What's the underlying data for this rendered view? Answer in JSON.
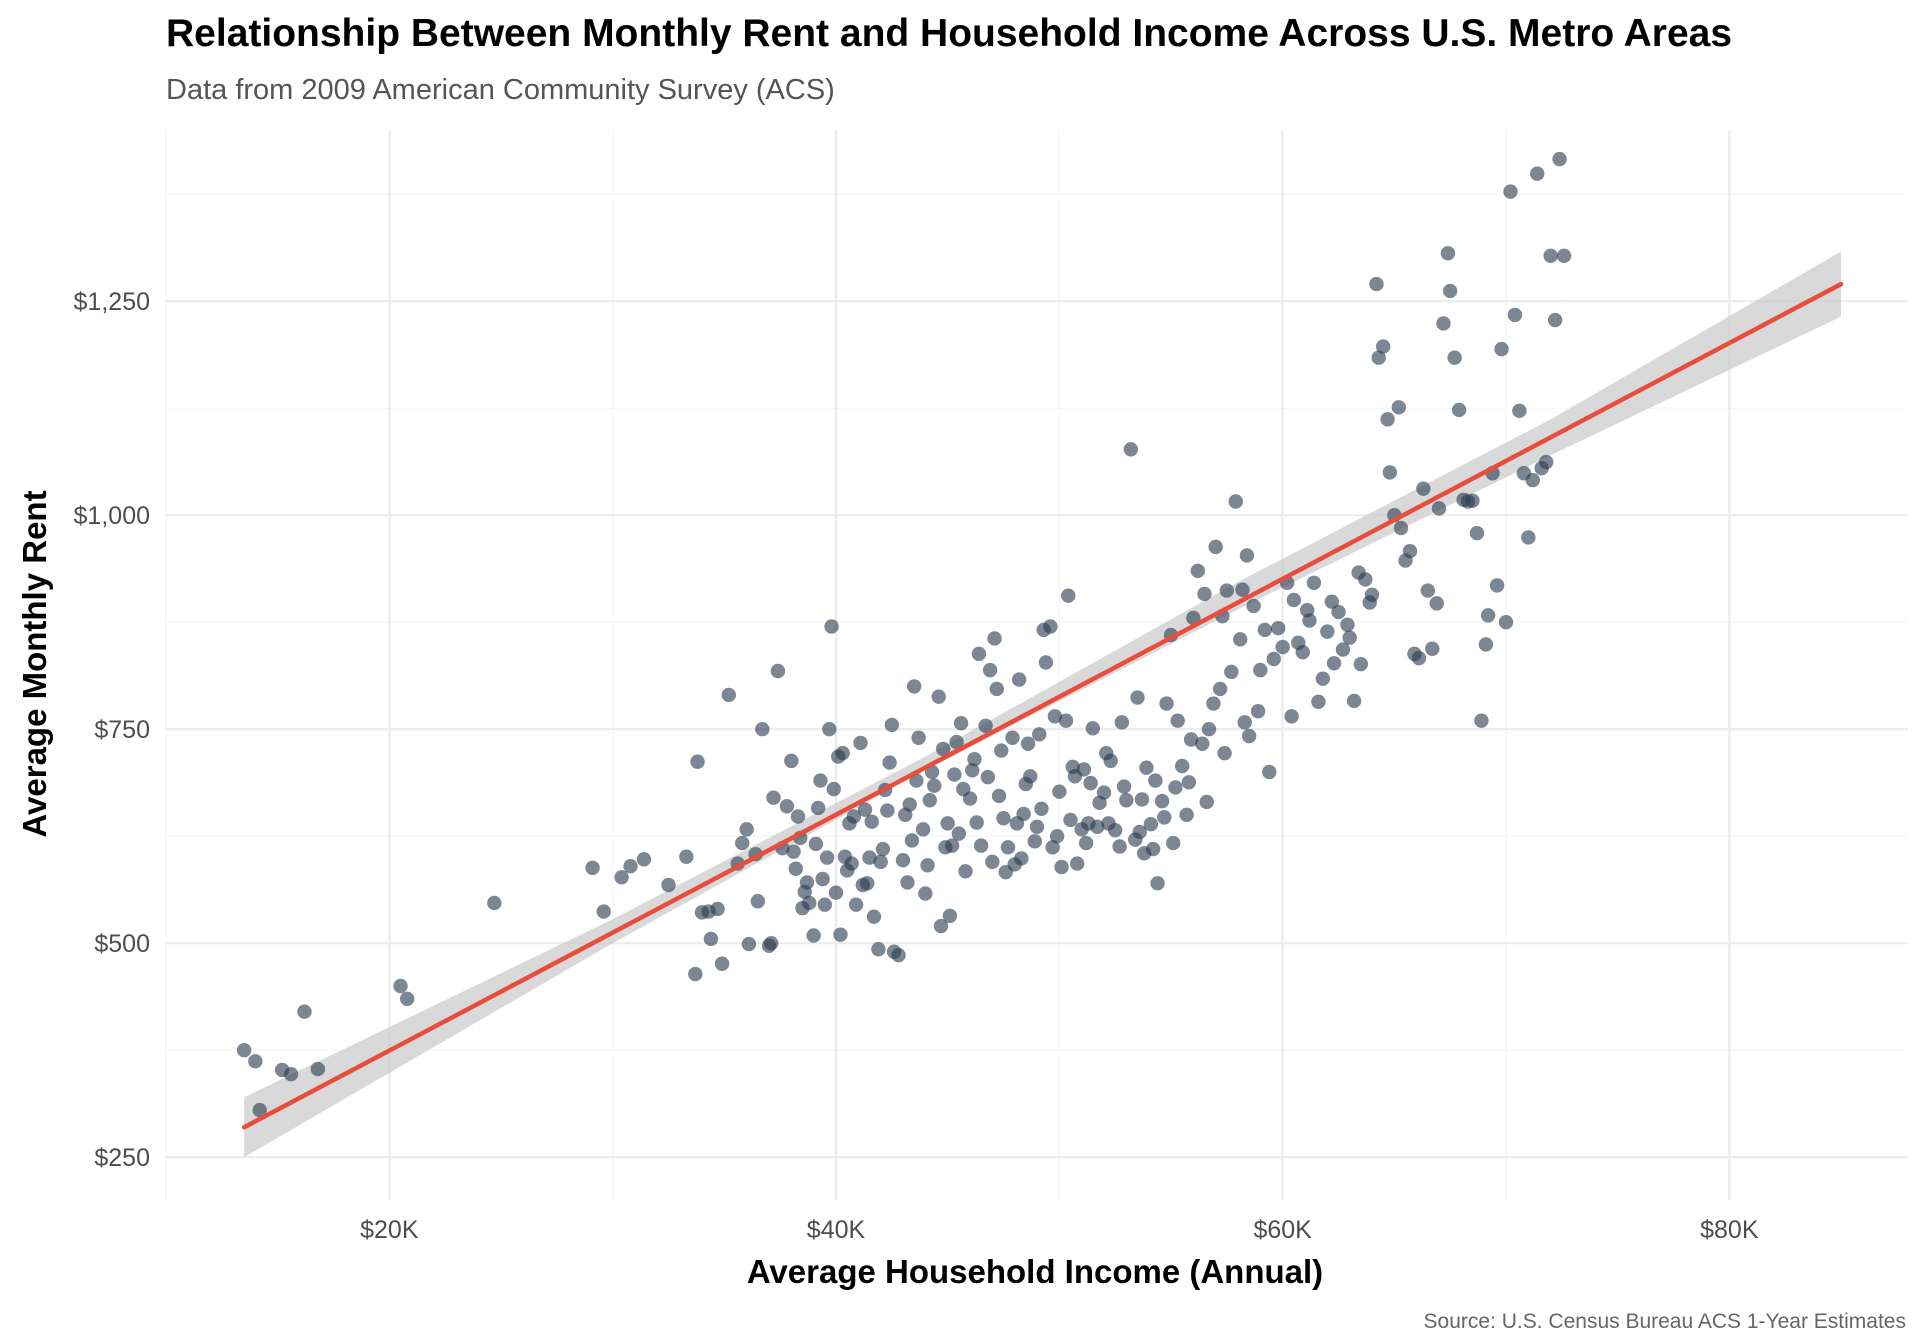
{
  "chart_data": {
    "type": "scatter",
    "title": "Relationship Between Monthly Rent and Household Income Across U.S. Metro Areas",
    "subtitle": "Data from 2009 American Community Survey (ACS)",
    "caption": "Source: U.S. Census Bureau ACS 1-Year Estimates",
    "xlabel": "Average Household Income (Annual)",
    "ylabel": "Average Monthly Rent",
    "xlim": [
      10000,
      88000
    ],
    "ylim": [
      200,
      1450
    ],
    "x_ticks": [
      {
        "value": 20000,
        "label": "$20K"
      },
      {
        "value": 40000,
        "label": "$40K"
      },
      {
        "value": 60000,
        "label": "$60K"
      },
      {
        "value": 80000,
        "label": "$80K"
      }
    ],
    "y_ticks": [
      {
        "value": 250,
        "label": "$250"
      },
      {
        "value": 500,
        "label": "$500"
      },
      {
        "value": 750,
        "label": "$750"
      },
      {
        "value": 1000,
        "label": "$1,000"
      },
      {
        "value": 1250,
        "label": "$1,250"
      }
    ],
    "grid": true,
    "colors": {
      "points": "#2c3e50",
      "fit_line": "#e74c3c",
      "confidence_band": "#cccccc",
      "grid": "#ebebeb"
    },
    "fit_line": {
      "x": [
        13500,
        85000
      ],
      "y": [
        285,
        1270
      ]
    },
    "confidence_band": [
      {
        "x": 13500,
        "lower": 250,
        "upper": 320
      },
      {
        "x": 30000,
        "lower": 500,
        "upper": 528
      },
      {
        "x": 44000,
        "lower": 702,
        "upper": 718
      },
      {
        "x": 58000,
        "lower": 890,
        "upper": 922
      },
      {
        "x": 72000,
        "lower": 1070,
        "upper": 1112
      },
      {
        "x": 85000,
        "lower": 1232,
        "upper": 1308
      }
    ],
    "points": [
      [
        13500,
        375
      ],
      [
        14000,
        362
      ],
      [
        14200,
        305
      ],
      [
        15200,
        352
      ],
      [
        15600,
        347
      ],
      [
        16200,
        420
      ],
      [
        16800,
        353
      ],
      [
        20500,
        450
      ],
      [
        20800,
        435
      ],
      [
        24700,
        547
      ],
      [
        29100,
        588
      ],
      [
        29600,
        537
      ],
      [
        30400,
        577
      ],
      [
        30800,
        590
      ],
      [
        31400,
        598
      ],
      [
        32500,
        568
      ],
      [
        33300,
        601
      ],
      [
        33700,
        464
      ],
      [
        33800,
        712
      ],
      [
        34000,
        536
      ],
      [
        34300,
        537
      ],
      [
        34400,
        505
      ],
      [
        34700,
        540
      ],
      [
        34900,
        476
      ],
      [
        35200,
        790
      ],
      [
        35600,
        593
      ],
      [
        35800,
        617
      ],
      [
        36100,
        499
      ],
      [
        36400,
        604
      ],
      [
        36700,
        750
      ],
      [
        37000,
        497
      ],
      [
        37100,
        500
      ],
      [
        37400,
        818
      ],
      [
        37800,
        660
      ],
      [
        38100,
        607
      ],
      [
        38200,
        587
      ],
      [
        38400,
        623
      ],
      [
        38500,
        541
      ],
      [
        38600,
        560
      ],
      [
        38800,
        547
      ],
      [
        39000,
        509
      ],
      [
        39100,
        616
      ],
      [
        39200,
        658
      ],
      [
        39400,
        575
      ],
      [
        39500,
        545
      ],
      [
        39700,
        750
      ],
      [
        39800,
        870
      ],
      [
        39900,
        680
      ],
      [
        40000,
        559
      ],
      [
        40100,
        718
      ],
      [
        40200,
        510
      ],
      [
        40400,
        601
      ],
      [
        40500,
        585
      ],
      [
        40600,
        640
      ],
      [
        40700,
        593
      ],
      [
        40900,
        545
      ],
      [
        41100,
        734
      ],
      [
        41200,
        568
      ],
      [
        41300,
        656
      ],
      [
        41500,
        600
      ],
      [
        41600,
        642
      ],
      [
        41700,
        531
      ],
      [
        41900,
        493
      ],
      [
        42000,
        595
      ],
      [
        42100,
        610
      ],
      [
        42200,
        679
      ],
      [
        42300,
        655
      ],
      [
        42400,
        711
      ],
      [
        42600,
        490
      ],
      [
        42800,
        486
      ],
      [
        43000,
        597
      ],
      [
        43100,
        650
      ],
      [
        43200,
        571
      ],
      [
        43400,
        620
      ],
      [
        43500,
        800
      ],
      [
        43600,
        690
      ],
      [
        43700,
        740
      ],
      [
        43900,
        633
      ],
      [
        44000,
        558
      ],
      [
        44200,
        667
      ],
      [
        44300,
        700
      ],
      [
        44400,
        684
      ],
      [
        44600,
        788
      ],
      [
        44700,
        520
      ],
      [
        44900,
        612
      ],
      [
        45000,
        640
      ],
      [
        45100,
        532
      ],
      [
        45300,
        697
      ],
      [
        45400,
        735
      ],
      [
        45500,
        628
      ],
      [
        45700,
        680
      ],
      [
        45800,
        584
      ],
      [
        46000,
        669
      ],
      [
        46100,
        702
      ],
      [
        46200,
        715
      ],
      [
        46400,
        838
      ],
      [
        46500,
        614
      ],
      [
        46700,
        754
      ],
      [
        46800,
        694
      ],
      [
        46900,
        819
      ],
      [
        47100,
        856
      ],
      [
        47200,
        797
      ],
      [
        47300,
        672
      ],
      [
        47500,
        646
      ],
      [
        47600,
        583
      ],
      [
        47700,
        612
      ],
      [
        47900,
        740
      ],
      [
        48000,
        592
      ],
      [
        48200,
        808
      ],
      [
        48300,
        599
      ],
      [
        48400,
        651
      ],
      [
        48600,
        733
      ],
      [
        48700,
        695
      ],
      [
        48900,
        619
      ],
      [
        49000,
        636
      ],
      [
        49100,
        744
      ],
      [
        49300,
        866
      ],
      [
        49400,
        828
      ],
      [
        49600,
        870
      ],
      [
        49700,
        612
      ],
      [
        49800,
        765
      ],
      [
        50000,
        677
      ],
      [
        50100,
        589
      ],
      [
        50300,
        760
      ],
      [
        50400,
        906
      ],
      [
        50500,
        644
      ],
      [
        50700,
        695
      ],
      [
        50800,
        593
      ],
      [
        51000,
        633
      ],
      [
        51100,
        703
      ],
      [
        51200,
        617
      ],
      [
        51400,
        687
      ],
      [
        51500,
        751
      ],
      [
        51700,
        636
      ],
      [
        51800,
        664
      ],
      [
        52000,
        676
      ],
      [
        52200,
        640
      ],
      [
        52300,
        713
      ],
      [
        52500,
        632
      ],
      [
        52700,
        613
      ],
      [
        52800,
        758
      ],
      [
        53000,
        667
      ],
      [
        53200,
        1077
      ],
      [
        53400,
        621
      ],
      [
        53500,
        787
      ],
      [
        53700,
        668
      ],
      [
        53800,
        605
      ],
      [
        53900,
        705
      ],
      [
        54100,
        639
      ],
      [
        54200,
        610
      ],
      [
        54400,
        570
      ],
      [
        54600,
        666
      ],
      [
        54700,
        647
      ],
      [
        54800,
        780
      ],
      [
        55000,
        860
      ],
      [
        55200,
        682
      ],
      [
        55300,
        760
      ],
      [
        55500,
        707
      ],
      [
        55700,
        650
      ],
      [
        55800,
        688
      ],
      [
        56000,
        880
      ],
      [
        56200,
        935
      ],
      [
        56400,
        733
      ],
      [
        56500,
        908
      ],
      [
        56700,
        750
      ],
      [
        56900,
        780
      ],
      [
        57000,
        963
      ],
      [
        57200,
        797
      ],
      [
        57300,
        882
      ],
      [
        57500,
        912
      ],
      [
        57700,
        817
      ],
      [
        57900,
        1016
      ],
      [
        58100,
        855
      ],
      [
        58200,
        913
      ],
      [
        58400,
        953
      ],
      [
        58500,
        742
      ],
      [
        58700,
        894
      ],
      [
        58900,
        771
      ],
      [
        59000,
        819
      ],
      [
        59200,
        866
      ],
      [
        59400,
        700
      ],
      [
        59600,
        832
      ],
      [
        59800,
        868
      ],
      [
        60000,
        846
      ],
      [
        60200,
        921
      ],
      [
        60400,
        765
      ],
      [
        60500,
        901
      ],
      [
        60700,
        851
      ],
      [
        60900,
        840
      ],
      [
        61100,
        889
      ],
      [
        61200,
        877
      ],
      [
        61400,
        921
      ],
      [
        61600,
        782
      ],
      [
        61800,
        809
      ],
      [
        62000,
        864
      ],
      [
        62200,
        899
      ],
      [
        62300,
        827
      ],
      [
        62500,
        887
      ],
      [
        62700,
        843
      ],
      [
        62900,
        872
      ],
      [
        63000,
        857
      ],
      [
        63200,
        783
      ],
      [
        63400,
        933
      ],
      [
        63500,
        826
      ],
      [
        63700,
        925
      ],
      [
        63900,
        898
      ],
      [
        64000,
        907
      ],
      [
        64200,
        1270
      ],
      [
        64300,
        1184
      ],
      [
        64500,
        1197
      ],
      [
        64700,
        1112
      ],
      [
        64800,
        1050
      ],
      [
        65000,
        1000
      ],
      [
        65200,
        1126
      ],
      [
        65300,
        985
      ],
      [
        65500,
        947
      ],
      [
        65700,
        958
      ],
      [
        65900,
        838
      ],
      [
        66100,
        833
      ],
      [
        66300,
        1031
      ],
      [
        66500,
        912
      ],
      [
        66700,
        844
      ],
      [
        66900,
        897
      ],
      [
        67000,
        1008
      ],
      [
        67200,
        1224
      ],
      [
        67400,
        1306
      ],
      [
        67500,
        1262
      ],
      [
        67700,
        1184
      ],
      [
        67900,
        1123
      ],
      [
        68100,
        1018
      ],
      [
        68300,
        1016
      ],
      [
        68500,
        1017
      ],
      [
        68700,
        979
      ],
      [
        68900,
        760
      ],
      [
        69100,
        849
      ],
      [
        69200,
        883
      ],
      [
        69400,
        1049
      ],
      [
        69600,
        918
      ],
      [
        69800,
        1194
      ],
      [
        70000,
        875
      ],
      [
        70200,
        1378
      ],
      [
        70400,
        1234
      ],
      [
        70600,
        1122
      ],
      [
        70800,
        1049
      ],
      [
        71000,
        974
      ],
      [
        71200,
        1041
      ],
      [
        71400,
        1399
      ],
      [
        71600,
        1055
      ],
      [
        71800,
        1062
      ],
      [
        72000,
        1303
      ],
      [
        72200,
        1228
      ],
      [
        72400,
        1416
      ],
      [
        72600,
        1303
      ],
      [
        36000,
        633
      ],
      [
        36500,
        549
      ],
      [
        37200,
        670
      ],
      [
        37600,
        611
      ],
      [
        38000,
        713
      ],
      [
        38300,
        648
      ],
      [
        38700,
        571
      ],
      [
        39300,
        690
      ],
      [
        39600,
        600
      ],
      [
        40300,
        722
      ],
      [
        40800,
        648
      ],
      [
        41400,
        570
      ],
      [
        42500,
        755
      ],
      [
        43300,
        662
      ],
      [
        44100,
        591
      ],
      [
        44800,
        727
      ],
      [
        45200,
        614
      ],
      [
        45600,
        757
      ],
      [
        46300,
        641
      ],
      [
        47000,
        595
      ],
      [
        47400,
        725
      ],
      [
        48100,
        640
      ],
      [
        48500,
        686
      ],
      [
        49200,
        657
      ],
      [
        49900,
        625
      ],
      [
        50600,
        706
      ],
      [
        51300,
        640
      ],
      [
        52100,
        722
      ],
      [
        52900,
        683
      ],
      [
        53600,
        630
      ],
      [
        54300,
        690
      ],
      [
        55100,
        617
      ],
      [
        55900,
        738
      ],
      [
        56600,
        665
      ],
      [
        57400,
        722
      ],
      [
        58300,
        758
      ]
    ]
  }
}
